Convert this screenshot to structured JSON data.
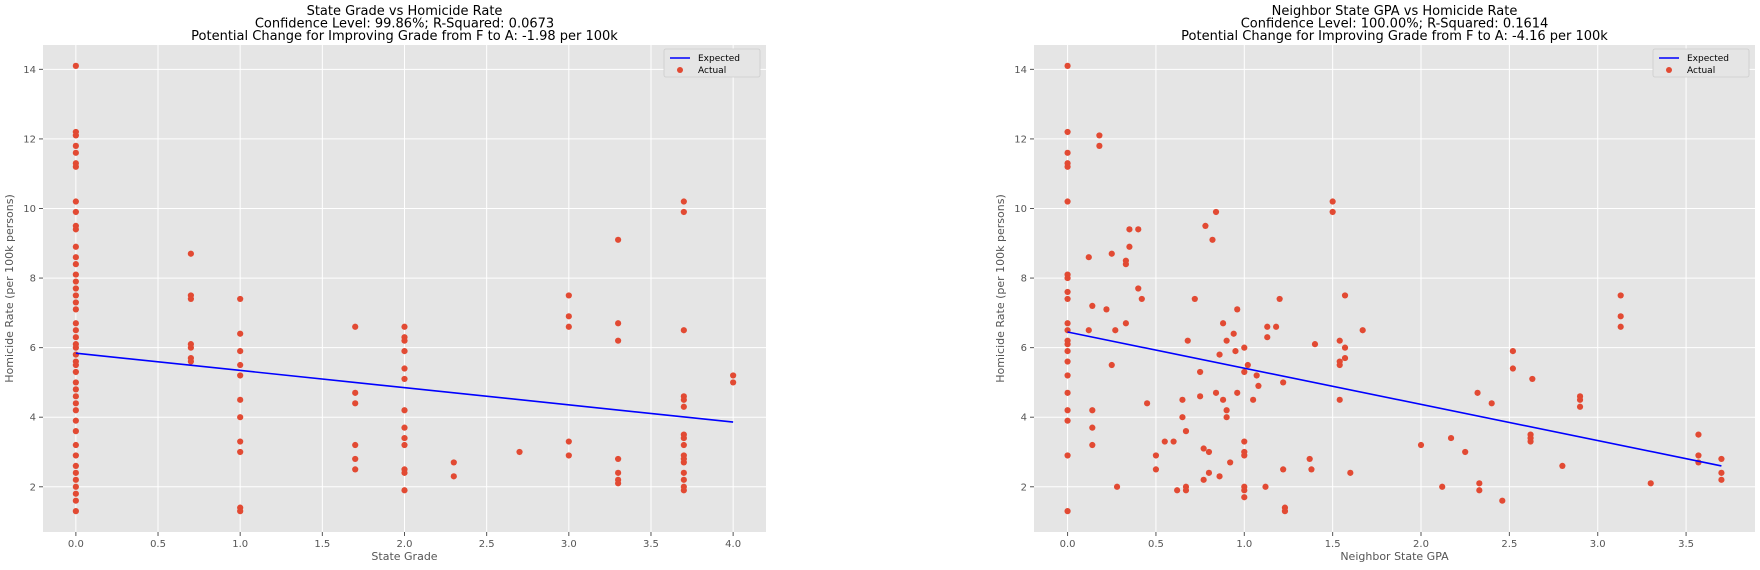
{
  "chart_data": [
    {
      "type": "scatter",
      "title_lines": [
        "State Grade vs Homicide Rate",
        "Confidence Level: 99.86%; R-Squared: 0.0673",
        "Potential Change for Improving Grade from F to A: -1.98 per 100k"
      ],
      "xlabel": "State Grade",
      "ylabel": "Homicide Rate (per 100k persons)",
      "xlim": [
        -0.2,
        4.2
      ],
      "ylim": [
        0.7,
        14.7
      ],
      "xticks": [
        "0.0",
        "0.5",
        "1.0",
        "1.5",
        "2.0",
        "2.5",
        "3.0",
        "3.5",
        "4.0"
      ],
      "yticks": [
        "2",
        "4",
        "6",
        "8",
        "10",
        "12",
        "14"
      ],
      "grid": true,
      "legend_position": "top-right",
      "series": [
        {
          "name": "Expected",
          "kind": "line",
          "color": "#0000ff",
          "x": [
            0.0,
            4.0
          ],
          "y": [
            5.84,
            3.86
          ]
        },
        {
          "name": "Actual",
          "kind": "scatter",
          "color": "#e24a33",
          "points": [
            [
              0.0,
              14.1
            ],
            [
              0.0,
              12.2
            ],
            [
              0.0,
              12.1
            ],
            [
              0.0,
              11.8
            ],
            [
              0.0,
              11.6
            ],
            [
              0.0,
              11.3
            ],
            [
              0.0,
              11.2
            ],
            [
              0.0,
              10.2
            ],
            [
              0.0,
              9.9
            ],
            [
              0.0,
              9.5
            ],
            [
              0.0,
              9.4
            ],
            [
              0.0,
              8.9
            ],
            [
              0.0,
              8.6
            ],
            [
              0.0,
              8.4
            ],
            [
              0.0,
              8.1
            ],
            [
              0.0,
              7.9
            ],
            [
              0.0,
              7.7
            ],
            [
              0.0,
              7.5
            ],
            [
              0.0,
              7.3
            ],
            [
              0.0,
              7.1
            ],
            [
              0.0,
              6.7
            ],
            [
              0.0,
              6.5
            ],
            [
              0.0,
              6.3
            ],
            [
              0.0,
              6.1
            ],
            [
              0.0,
              6.0
            ],
            [
              0.0,
              5.8
            ],
            [
              0.0,
              5.6
            ],
            [
              0.0,
              5.5
            ],
            [
              0.0,
              5.3
            ],
            [
              0.0,
              5.0
            ],
            [
              0.0,
              4.8
            ],
            [
              0.0,
              4.6
            ],
            [
              0.0,
              4.4
            ],
            [
              0.0,
              4.2
            ],
            [
              0.0,
              3.9
            ],
            [
              0.0,
              3.6
            ],
            [
              0.0,
              3.2
            ],
            [
              0.0,
              2.9
            ],
            [
              0.0,
              2.6
            ],
            [
              0.0,
              2.4
            ],
            [
              0.0,
              2.2
            ],
            [
              0.0,
              2.0
            ],
            [
              0.0,
              1.8
            ],
            [
              0.0,
              1.6
            ],
            [
              0.0,
              1.3
            ],
            [
              0.7,
              8.7
            ],
            [
              0.7,
              7.5
            ],
            [
              0.7,
              7.4
            ],
            [
              0.7,
              6.1
            ],
            [
              0.7,
              6.0
            ],
            [
              0.7,
              5.7
            ],
            [
              0.7,
              5.6
            ],
            [
              1.0,
              7.4
            ],
            [
              1.0,
              6.4
            ],
            [
              1.0,
              5.9
            ],
            [
              1.0,
              5.5
            ],
            [
              1.0,
              5.2
            ],
            [
              1.0,
              4.5
            ],
            [
              1.0,
              4.0
            ],
            [
              1.0,
              3.3
            ],
            [
              1.0,
              3.0
            ],
            [
              1.0,
              1.4
            ],
            [
              1.0,
              1.3
            ],
            [
              1.7,
              6.6
            ],
            [
              1.7,
              4.7
            ],
            [
              1.7,
              4.4
            ],
            [
              1.7,
              3.2
            ],
            [
              1.7,
              2.8
            ],
            [
              1.7,
              2.5
            ],
            [
              2.0,
              6.6
            ],
            [
              2.0,
              6.3
            ],
            [
              2.0,
              6.2
            ],
            [
              2.0,
              5.9
            ],
            [
              2.0,
              5.4
            ],
            [
              2.0,
              5.1
            ],
            [
              2.0,
              4.2
            ],
            [
              2.0,
              3.7
            ],
            [
              2.0,
              3.4
            ],
            [
              2.0,
              3.2
            ],
            [
              2.0,
              2.5
            ],
            [
              2.0,
              2.4
            ],
            [
              2.0,
              1.9
            ],
            [
              2.3,
              2.7
            ],
            [
              2.3,
              2.3
            ],
            [
              2.7,
              3.0
            ],
            [
              3.0,
              7.5
            ],
            [
              3.0,
              6.9
            ],
            [
              3.0,
              6.6
            ],
            [
              3.0,
              3.3
            ],
            [
              3.0,
              2.9
            ],
            [
              3.3,
              9.1
            ],
            [
              3.3,
              6.7
            ],
            [
              3.3,
              6.2
            ],
            [
              3.3,
              2.8
            ],
            [
              3.3,
              2.4
            ],
            [
              3.3,
              2.2
            ],
            [
              3.3,
              2.1
            ],
            [
              3.7,
              10.2
            ],
            [
              3.7,
              9.9
            ],
            [
              3.7,
              6.5
            ],
            [
              3.7,
              4.6
            ],
            [
              3.7,
              4.5
            ],
            [
              3.7,
              4.3
            ],
            [
              3.7,
              3.5
            ],
            [
              3.7,
              3.4
            ],
            [
              3.7,
              3.2
            ],
            [
              3.7,
              2.9
            ],
            [
              3.7,
              2.8
            ],
            [
              3.7,
              2.7
            ],
            [
              3.7,
              2.4
            ],
            [
              3.7,
              2.2
            ],
            [
              3.7,
              2.0
            ],
            [
              3.7,
              1.9
            ],
            [
              4.0,
              5.2
            ],
            [
              4.0,
              5.0
            ]
          ]
        }
      ]
    },
    {
      "type": "scatter",
      "title_lines": [
        "Neighbor State GPA vs Homicide Rate",
        "Confidence Level: 100.00%; R-Squared: 0.1614",
        "Potential Change for Improving Grade from F to A: -4.16 per 100k"
      ],
      "xlabel": "Neighbor State GPA",
      "ylabel": "Homicide Rate (per 100k persons)",
      "xlim": [
        -0.19,
        3.89
      ],
      "ylim": [
        0.7,
        14.7
      ],
      "xticks": [
        "0.0",
        "0.5",
        "1.0",
        "1.5",
        "2.0",
        "2.5",
        "3.0",
        "3.5"
      ],
      "yticks": [
        "2",
        "4",
        "6",
        "8",
        "10",
        "12",
        "14"
      ],
      "grid": true,
      "legend_position": "top-right",
      "series": [
        {
          "name": "Expected",
          "kind": "line",
          "color": "#0000ff",
          "x": [
            0.0,
            3.7
          ],
          "y": [
            6.45,
            2.6
          ]
        },
        {
          "name": "Actual",
          "kind": "scatter",
          "color": "#e24a33",
          "points": [
            [
              0.0,
              14.1
            ],
            [
              0.0,
              12.2
            ],
            [
              0.0,
              11.6
            ],
            [
              0.0,
              11.3
            ],
            [
              0.0,
              11.2
            ],
            [
              0.0,
              10.2
            ],
            [
              0.0,
              8.1
            ],
            [
              0.0,
              8.0
            ],
            [
              0.0,
              7.6
            ],
            [
              0.0,
              7.4
            ],
            [
              0.0,
              6.7
            ],
            [
              0.0,
              6.5
            ],
            [
              0.0,
              6.2
            ],
            [
              0.0,
              6.1
            ],
            [
              0.0,
              5.9
            ],
            [
              0.0,
              5.6
            ],
            [
              0.0,
              5.2
            ],
            [
              0.0,
              4.7
            ],
            [
              0.0,
              4.2
            ],
            [
              0.0,
              3.9
            ],
            [
              0.0,
              2.9
            ],
            [
              0.0,
              1.3
            ],
            [
              0.12,
              6.5
            ],
            [
              0.12,
              8.6
            ],
            [
              0.14,
              7.2
            ],
            [
              0.14,
              4.2
            ],
            [
              0.14,
              3.7
            ],
            [
              0.14,
              3.2
            ],
            [
              0.18,
              12.1
            ],
            [
              0.18,
              11.8
            ],
            [
              0.22,
              7.1
            ],
            [
              0.25,
              8.7
            ],
            [
              0.25,
              5.5
            ],
            [
              0.27,
              6.5
            ],
            [
              0.28,
              2.0
            ],
            [
              0.33,
              6.7
            ],
            [
              0.33,
              8.4
            ],
            [
              0.33,
              8.5
            ],
            [
              0.35,
              9.4
            ],
            [
              0.35,
              8.9
            ],
            [
              0.4,
              9.4
            ],
            [
              0.4,
              7.7
            ],
            [
              0.42,
              7.4
            ],
            [
              0.45,
              4.4
            ],
            [
              0.5,
              2.9
            ],
            [
              0.5,
              2.5
            ],
            [
              0.55,
              3.3
            ],
            [
              0.6,
              3.3
            ],
            [
              0.62,
              1.9
            ],
            [
              0.65,
              4.5
            ],
            [
              0.65,
              4.0
            ],
            [
              0.67,
              3.6
            ],
            [
              0.67,
              2.0
            ],
            [
              0.67,
              1.9
            ],
            [
              0.68,
              6.2
            ],
            [
              0.72,
              7.4
            ],
            [
              0.75,
              5.3
            ],
            [
              0.75,
              4.6
            ],
            [
              0.77,
              3.1
            ],
            [
              0.77,
              2.2
            ],
            [
              0.78,
              9.5
            ],
            [
              0.8,
              3.0
            ],
            [
              0.8,
              2.4
            ],
            [
              0.82,
              9.1
            ],
            [
              0.84,
              9.9
            ],
            [
              0.84,
              4.7
            ],
            [
              0.86,
              5.8
            ],
            [
              0.86,
              2.3
            ],
            [
              0.88,
              6.7
            ],
            [
              0.88,
              4.5
            ],
            [
              0.9,
              6.2
            ],
            [
              0.9,
              4.2
            ],
            [
              0.9,
              4.0
            ],
            [
              0.92,
              2.7
            ],
            [
              0.94,
              6.4
            ],
            [
              0.95,
              5.9
            ],
            [
              0.96,
              7.1
            ],
            [
              0.96,
              4.7
            ],
            [
              1.0,
              6.0
            ],
            [
              1.0,
              5.3
            ],
            [
              1.0,
              3.3
            ],
            [
              1.0,
              3.0
            ],
            [
              1.0,
              2.9
            ],
            [
              1.0,
              2.0
            ],
            [
              1.0,
              1.9
            ],
            [
              1.0,
              1.7
            ],
            [
              1.02,
              5.5
            ],
            [
              1.05,
              4.5
            ],
            [
              1.07,
              5.2
            ],
            [
              1.08,
              4.9
            ],
            [
              1.12,
              2.0
            ],
            [
              1.13,
              6.6
            ],
            [
              1.13,
              6.3
            ],
            [
              1.18,
              6.6
            ],
            [
              1.2,
              7.4
            ],
            [
              1.22,
              2.5
            ],
            [
              1.22,
              5.0
            ],
            [
              1.23,
              1.4
            ],
            [
              1.23,
              1.3
            ],
            [
              1.37,
              2.8
            ],
            [
              1.38,
              2.5
            ],
            [
              1.4,
              6.1
            ],
            [
              1.5,
              10.2
            ],
            [
              1.5,
              9.9
            ],
            [
              1.54,
              6.2
            ],
            [
              1.54,
              5.6
            ],
            [
              1.54,
              5.5
            ],
            [
              1.54,
              4.5
            ],
            [
              1.57,
              7.5
            ],
            [
              1.57,
              6.0
            ],
            [
              1.57,
              5.7
            ],
            [
              1.6,
              2.4
            ],
            [
              1.67,
              6.5
            ],
            [
              2.0,
              3.2
            ],
            [
              2.12,
              2.0
            ],
            [
              2.17,
              3.4
            ],
            [
              2.25,
              3.0
            ],
            [
              2.32,
              4.7
            ],
            [
              2.33,
              2.1
            ],
            [
              2.33,
              1.9
            ],
            [
              2.4,
              4.4
            ],
            [
              2.46,
              1.6
            ],
            [
              2.52,
              5.9
            ],
            [
              2.52,
              5.4
            ],
            [
              2.63,
              5.1
            ],
            [
              2.62,
              3.5
            ],
            [
              2.62,
              3.4
            ],
            [
              2.62,
              3.3
            ],
            [
              2.8,
              2.6
            ],
            [
              2.9,
              4.6
            ],
            [
              2.9,
              4.5
            ],
            [
              2.9,
              4.3
            ],
            [
              3.13,
              7.5
            ],
            [
              3.13,
              6.9
            ],
            [
              3.13,
              6.6
            ],
            [
              3.3,
              2.1
            ],
            [
              3.57,
              3.5
            ],
            [
              3.57,
              2.9
            ],
            [
              3.57,
              2.7
            ],
            [
              3.7,
              2.8
            ],
            [
              3.7,
              2.4
            ],
            [
              3.7,
              2.2
            ]
          ]
        }
      ]
    }
  ]
}
